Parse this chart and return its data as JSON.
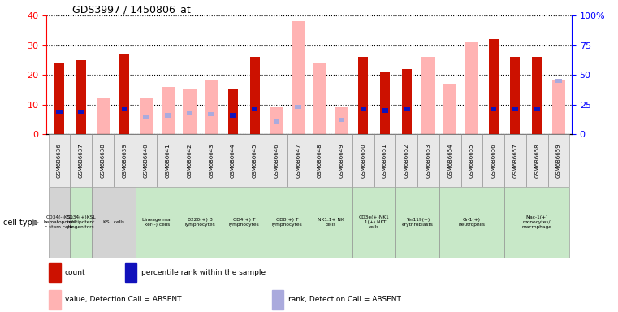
{
  "title": "GDS3997 / 1450806_at",
  "samples": [
    "GSM686636",
    "GSM686637",
    "GSM686638",
    "GSM686639",
    "GSM686640",
    "GSM686641",
    "GSM686642",
    "GSM686643",
    "GSM686644",
    "GSM686645",
    "GSM686646",
    "GSM686647",
    "GSM686648",
    "GSM686649",
    "GSM686650",
    "GSM686651",
    "GSM686652",
    "GSM686653",
    "GSM686654",
    "GSM686655",
    "GSM686656",
    "GSM686657",
    "GSM686658",
    "GSM686659"
  ],
  "count": [
    24,
    25,
    null,
    27,
    null,
    null,
    null,
    null,
    15,
    26,
    null,
    null,
    null,
    null,
    26,
    21,
    22,
    null,
    null,
    null,
    32,
    26,
    26,
    null
  ],
  "value_absent": [
    null,
    null,
    12,
    null,
    12,
    16,
    15,
    18,
    null,
    null,
    9,
    38,
    24,
    9,
    null,
    null,
    null,
    26,
    17,
    31,
    null,
    null,
    null,
    18
  ],
  "percentile_rank": [
    19,
    19,
    null,
    21,
    null,
    null,
    null,
    null,
    16,
    21,
    null,
    null,
    null,
    null,
    21,
    20,
    21,
    null,
    null,
    null,
    21,
    21,
    21,
    null
  ],
  "rank_absent": [
    null,
    null,
    null,
    null,
    14,
    16,
    18,
    17,
    null,
    null,
    11,
    23,
    null,
    12,
    null,
    null,
    null,
    null,
    null,
    null,
    null,
    null,
    null,
    45
  ],
  "cell_types": [
    {
      "label": "CD34(-)KSL\nhematopoieti\nc stem cells",
      "start": 0,
      "end": 1,
      "color": "#d3d3d3"
    },
    {
      "label": "CD34(+)KSL\nmultipotent\nprogenitors",
      "start": 1,
      "end": 2,
      "color": "#c8e8c8"
    },
    {
      "label": "KSL cells",
      "start": 2,
      "end": 4,
      "color": "#d3d3d3"
    },
    {
      "label": "Lineage mar\nker(-) cells",
      "start": 4,
      "end": 6,
      "color": "#c8e8c8"
    },
    {
      "label": "B220(+) B\nlymphocytes",
      "start": 6,
      "end": 8,
      "color": "#c8e8c8"
    },
    {
      "label": "CD4(+) T\nlymphocytes",
      "start": 8,
      "end": 10,
      "color": "#c8e8c8"
    },
    {
      "label": "CD8(+) T\nlymphocytes",
      "start": 10,
      "end": 12,
      "color": "#c8e8c8"
    },
    {
      "label": "NK1.1+ NK\ncells",
      "start": 12,
      "end": 14,
      "color": "#c8e8c8"
    },
    {
      "label": "CD3e(+)NK1\n.1(+) NKT\ncells",
      "start": 14,
      "end": 16,
      "color": "#c8e8c8"
    },
    {
      "label": "Ter119(+)\nerythroblasts",
      "start": 16,
      "end": 18,
      "color": "#c8e8c8"
    },
    {
      "label": "Gr-1(+)\nneutrophils",
      "start": 18,
      "end": 21,
      "color": "#c8e8c8"
    },
    {
      "label": "Mac-1(+)\nmonocytes/\nmacrophage",
      "start": 21,
      "end": 24,
      "color": "#c8e8c8"
    }
  ],
  "ylim_left": [
    0,
    40
  ],
  "ylim_right": [
    0,
    100
  ],
  "yticks_left": [
    0,
    10,
    20,
    30,
    40
  ],
  "yticks_right": [
    0,
    25,
    50,
    75,
    100
  ],
  "color_count": "#cc1100",
  "color_value_absent": "#ffb3b3",
  "color_percentile": "#1111bb",
  "color_rank_absent": "#aaaadd",
  "bg_color": "#ffffff"
}
